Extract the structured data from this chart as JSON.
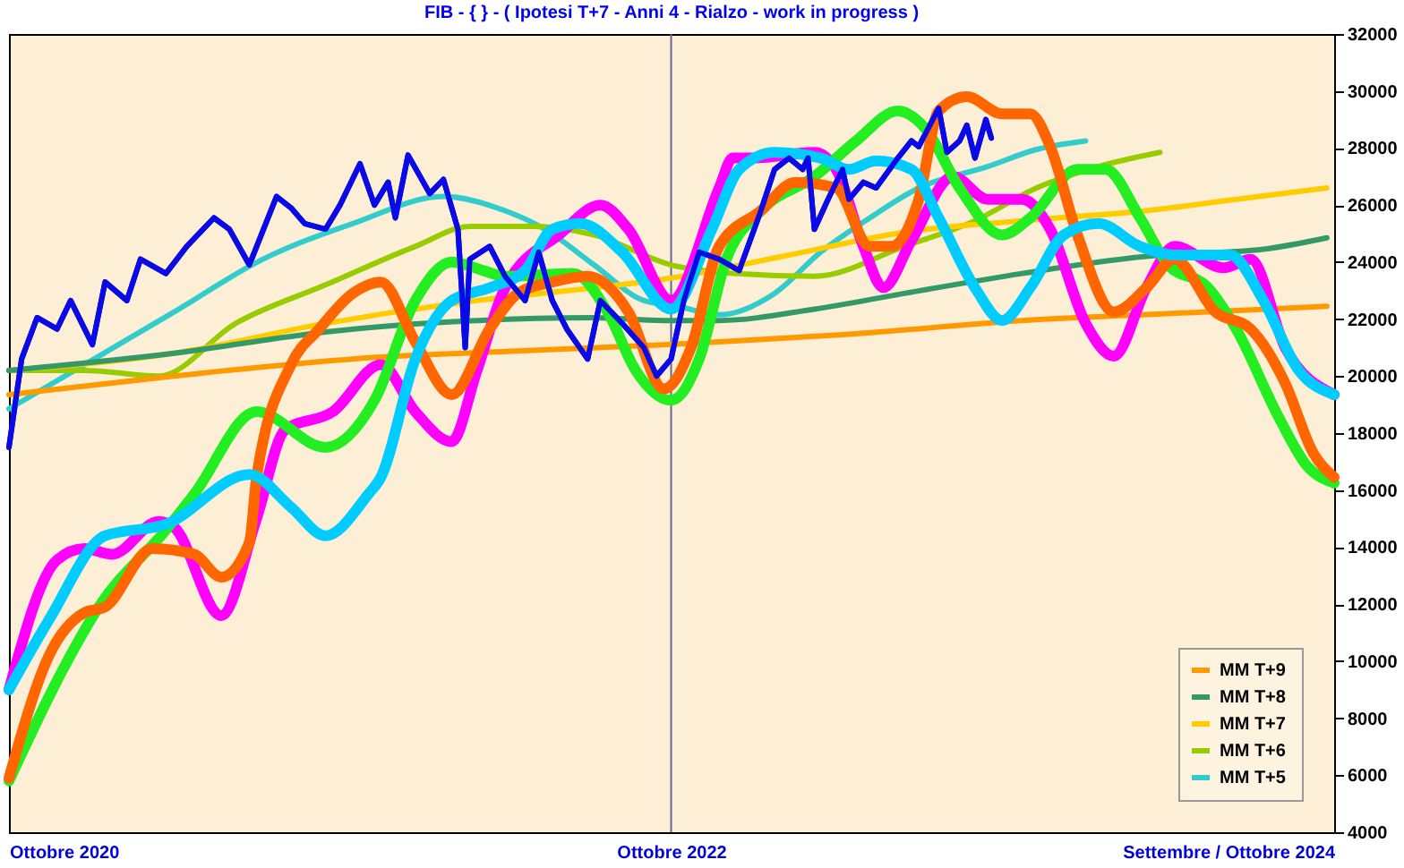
{
  "chart_data": {
    "type": "line",
    "title": "FIB - { } - ( Ipotesi T+7 - Anni 4 - Rialzo - work in progress )",
    "xlim": [
      "2020-10-01",
      "2024-10-01"
    ],
    "xticks": [
      {
        "value": "2020-10-01",
        "label": "Ottobre 2020"
      },
      {
        "value": "2022-10-01",
        "label": "Ottobre 2022"
      },
      {
        "value": "2024-10-01",
        "label": "Settembre / Ottobre 2024"
      }
    ],
    "ylim": [
      4000,
      32000
    ],
    "yticks": [
      4000,
      6000,
      8000,
      10000,
      12000,
      14000,
      16000,
      18000,
      20000,
      22000,
      24000,
      26000,
      28000,
      30000,
      32000
    ],
    "grid": false,
    "legend": "bottom right",
    "marker": "none",
    "line_style": "solid",
    "ref_lines": [
      {
        "axis": "x",
        "value": "2022-10-01",
        "color": "#666699"
      }
    ],
    "series": [
      {
        "color": "#0a0ae6",
        "x": [
          "2020-10-01",
          "2020-10-15",
          "2020-11-01",
          "2020-11-23",
          "2020-12-08",
          "2021-01-01",
          "2021-01-15",
          "2021-02-08",
          "2021-02-23",
          "2021-03-23",
          "2021-04-15",
          "2021-05-15",
          "2021-06-01",
          "2021-06-23",
          "2021-07-23",
          "2021-08-08",
          "2021-08-23",
          "2021-09-15",
          "2021-10-01",
          "2021-10-23",
          "2021-11-08",
          "2021-11-23",
          "2021-12-01",
          "2021-12-15",
          "2022-01-08",
          "2022-01-23",
          "2022-02-08",
          "2022-02-12",
          "2022-02-16",
          "2022-02-21",
          "2022-03-15",
          "2022-04-01",
          "2022-04-23",
          "2022-05-08",
          "2022-05-23",
          "2022-06-08",
          "2022-07-01",
          "2022-07-15",
          "2022-08-08",
          "2022-09-01",
          "2022-09-15",
          "2022-10-01",
          "2022-10-15",
          "2022-11-01",
          "2022-11-23",
          "2022-12-15",
          "2023-01-08",
          "2023-01-23",
          "2023-02-08",
          "2023-02-23",
          "2023-03-01",
          "2023-03-08",
          "2023-03-23",
          "2023-04-08",
          "2023-04-15",
          "2023-05-01",
          "2023-05-15",
          "2023-06-08",
          "2023-06-23",
          "2023-07-01",
          "2023-07-23",
          "2023-08-01",
          "2023-08-15",
          "2023-08-23",
          "2023-09-01",
          "2023-09-13",
          "2023-09-19"
        ],
        "values": [
          17500,
          20600,
          22050,
          21650,
          22650,
          21100,
          23300,
          22650,
          24100,
          23600,
          24550,
          25550,
          25150,
          23900,
          26300,
          25900,
          25350,
          25150,
          26000,
          27450,
          26000,
          26800,
          25550,
          27750,
          26400,
          26900,
          25150,
          23100,
          21000,
          24100,
          24550,
          23500,
          22650,
          24350,
          22650,
          21650,
          20600,
          22650,
          21850,
          21000,
          20000,
          20600,
          22650,
          24350,
          24100,
          23700,
          25800,
          27250,
          27650,
          27250,
          27650,
          25150,
          26200,
          27250,
          26200,
          26800,
          26600,
          27650,
          28250,
          28050,
          29400,
          27850,
          28250,
          28800,
          27650,
          29000,
          28350
        ]
      },
      {
        "color": "#ff00ff",
        "x": [
          "2020-10-01",
          "2020-11-23",
          "2020-12-23",
          "2021-01-23",
          "2021-03-15",
          "2021-04-01",
          "2021-05-23",
          "2021-07-01",
          "2021-08-01",
          "2021-09-23",
          "2021-11-15",
          "2021-12-23",
          "2022-02-01",
          "2022-03-01",
          "2022-04-01",
          "2022-06-01",
          "2022-07-15",
          "2022-08-15",
          "2022-10-01",
          "2022-11-23",
          "2022-12-08",
          "2023-01-01",
          "2023-03-08",
          "2023-04-01",
          "2023-05-01",
          "2023-05-23",
          "2023-06-23",
          "2023-08-08",
          "2023-09-15",
          "2023-10-23",
          "2023-11-23",
          "2024-01-01",
          "2024-02-01",
          "2024-03-08",
          "2024-04-08",
          "2024-06-01",
          "2024-07-01",
          "2024-08-08",
          "2024-10-01"
        ],
        "values": [
          9000,
          13550,
          13950,
          13750,
          14900,
          14700,
          11600,
          15000,
          18100,
          18750,
          20400,
          18750,
          17700,
          20200,
          23100,
          25000,
          26000,
          25150,
          22650,
          26600,
          27650,
          27650,
          27850,
          27250,
          24550,
          23100,
          24750,
          27000,
          26200,
          26200,
          25150,
          21850,
          20700,
          23100,
          24550,
          23800,
          24100,
          21000,
          19350
        ]
      },
      {
        "color": "#22ee22",
        "x": [
          "2020-10-01",
          "2020-12-01",
          "2021-01-08",
          "2021-03-23",
          "2021-04-23",
          "2021-07-01",
          "2021-09-15",
          "2021-11-08",
          "2021-12-23",
          "2022-02-01",
          "2022-03-08",
          "2022-04-01",
          "2022-06-15",
          "2022-07-23",
          "2022-08-23",
          "2022-10-01",
          "2022-11-01",
          "2022-12-01",
          "2023-01-08",
          "2023-03-08",
          "2023-04-23",
          "2023-06-08",
          "2023-07-08",
          "2023-08-15",
          "2023-10-01",
          "2023-11-01",
          "2023-12-23",
          "2024-01-23",
          "2024-03-01",
          "2024-04-01",
          "2024-05-15",
          "2024-06-15",
          "2024-08-01",
          "2024-09-01",
          "2024-10-01"
        ],
        "values": [
          5800,
          9800,
          11900,
          14600,
          15850,
          18750,
          17500,
          19150,
          22650,
          24000,
          23700,
          23500,
          23600,
          22250,
          20200,
          19150,
          20600,
          24100,
          25800,
          27000,
          28250,
          29300,
          28700,
          26600,
          24950,
          25550,
          27250,
          27250,
          25550,
          23900,
          23100,
          21650,
          18550,
          16850,
          16250
        ]
      },
      {
        "color": "#ff6600",
        "x": [
          "2020-10-01",
          "2020-11-15",
          "2020-12-23",
          "2021-01-15",
          "2021-03-08",
          "2021-04-23",
          "2021-05-23",
          "2021-06-23",
          "2021-07-01",
          "2021-08-08",
          "2021-09-08",
          "2021-10-15",
          "2021-11-15",
          "2021-12-23",
          "2022-02-01",
          "2022-03-15",
          "2022-04-15",
          "2022-05-23",
          "2022-07-01",
          "2022-08-15",
          "2022-09-23",
          "2022-10-23",
          "2022-11-23",
          "2023-01-08",
          "2023-02-15",
          "2023-04-01",
          "2023-05-08",
          "2023-06-01",
          "2023-07-01",
          "2023-07-23",
          "2023-08-23",
          "2023-10-01",
          "2023-11-01",
          "2023-11-23",
          "2023-12-23",
          "2024-02-01",
          "2024-03-08",
          "2024-04-08",
          "2024-05-23",
          "2024-07-01",
          "2024-08-08",
          "2024-09-08",
          "2024-10-01"
        ],
        "values": [
          5900,
          10250,
          11700,
          11900,
          13950,
          13750,
          12950,
          14150,
          16450,
          20400,
          21650,
          22900,
          23300,
          21200,
          19350,
          21650,
          22900,
          23300,
          23500,
          22250,
          19550,
          21000,
          24550,
          25800,
          26800,
          26600,
          24550,
          24550,
          26200,
          29300,
          29800,
          29200,
          29200,
          28050,
          24950,
          22250,
          23100,
          24100,
          22250,
          21650,
          19750,
          17300,
          16450
        ]
      },
      {
        "color": "#00ccff",
        "x": [
          "2020-10-01",
          "2020-11-15",
          "2021-01-15",
          "2021-03-23",
          "2021-06-23",
          "2021-08-08",
          "2021-09-15",
          "2021-11-01",
          "2021-11-15",
          "2021-12-23",
          "2022-02-01",
          "2022-03-15",
          "2022-04-23",
          "2022-05-23",
          "2022-06-23",
          "2022-08-08",
          "2022-10-01",
          "2022-11-15",
          "2022-12-15",
          "2023-01-23",
          "2023-03-15",
          "2023-04-15",
          "2023-05-15",
          "2023-06-23",
          "2023-07-23",
          "2023-09-01",
          "2023-10-01",
          "2023-11-01",
          "2023-12-08",
          "2024-01-15",
          "2024-03-01",
          "2024-04-08",
          "2024-06-08",
          "2024-07-15",
          "2024-08-23",
          "2024-10-01"
        ],
        "values": [
          9000,
          11500,
          14400,
          14800,
          16550,
          15400,
          14400,
          15850,
          16450,
          20600,
          22650,
          23100,
          23700,
          25150,
          25350,
          24350,
          22350,
          25150,
          27250,
          27850,
          27650,
          27250,
          27550,
          27250,
          25550,
          23100,
          21950,
          23100,
          24950,
          25350,
          24550,
          24250,
          24250,
          22650,
          20200,
          19350
        ]
      },
      {
        "name": "MM  T+9",
        "color": "#ff9900",
        "x": [
          "2020-10-01",
          "2021-04-01",
          "2021-10-15",
          "2022-05-01",
          "2022-09-23",
          "2022-11-23",
          "2023-04-08",
          "2023-10-23",
          "2024-05-15",
          "2024-09-23"
        ],
        "values": [
          19350,
          20000,
          20600,
          20900,
          21100,
          21200,
          21450,
          21950,
          22250,
          22450
        ]
      },
      {
        "name": "MM  T+8",
        "color": "#339966",
        "x": [
          "2020-10-01",
          "2021-04-01",
          "2021-09-15",
          "2022-03-01",
          "2022-07-08",
          "2022-09-23",
          "2022-11-23",
          "2023-03-08",
          "2023-06-15",
          "2023-10-23",
          "2024-03-08",
          "2024-07-15",
          "2024-09-23"
        ],
        "values": [
          20200,
          20800,
          21550,
          21950,
          22050,
          21950,
          21950,
          22350,
          22900,
          23600,
          24200,
          24450,
          24850
        ]
      },
      {
        "name": "MM  T+7",
        "color": "#ffcc00",
        "x": [
          "2020-10-01",
          "2021-04-01",
          "2021-09-15",
          "2022-03-01",
          "2022-07-08",
          "2022-09-23",
          "2023-02-01",
          "2023-06-15",
          "2023-10-23",
          "2024-03-08",
          "2024-06-15",
          "2024-09-23"
        ],
        "values": [
          20200,
          20800,
          21850,
          22650,
          23100,
          23400,
          24200,
          25050,
          25450,
          25800,
          26200,
          26600
        ]
      },
      {
        "name": "MM  T+6",
        "color": "#99cc00",
        "x": [
          "2020-10-01",
          "2020-12-23",
          "2021-03-15",
          "2021-06-08",
          "2021-09-15",
          "2021-12-23",
          "2022-02-21",
          "2022-05-01",
          "2022-07-08",
          "2022-10-01",
          "2022-12-08",
          "2023-03-08",
          "2023-06-15",
          "2023-09-01",
          "2023-11-08",
          "2024-01-15",
          "2024-03-23"
        ],
        "values": [
          20200,
          20200,
          20000,
          21850,
          23200,
          24550,
          25250,
          25250,
          24950,
          23900,
          23600,
          23500,
          24550,
          25450,
          26600,
          27350,
          27850
        ]
      },
      {
        "name": "MM  T+5",
        "color": "#33cccc",
        "x": [
          "2020-10-01",
          "2020-12-23",
          "2021-04-01",
          "2021-07-08",
          "2021-10-15",
          "2022-01-23",
          "2022-04-01",
          "2022-05-15",
          "2022-07-08",
          "2022-09-01",
          "2022-10-08",
          "2022-11-23",
          "2023-01-23",
          "2023-03-15",
          "2023-05-08",
          "2023-07-01",
          "2023-09-15",
          "2023-11-08",
          "2024-01-01"
        ],
        "values": [
          18850,
          20400,
          22250,
          24100,
          25350,
          26300,
          25800,
          25150,
          23900,
          22650,
          22450,
          22150,
          22900,
          24350,
          25550,
          26600,
          27350,
          27950,
          28250
        ]
      }
    ]
  }
}
